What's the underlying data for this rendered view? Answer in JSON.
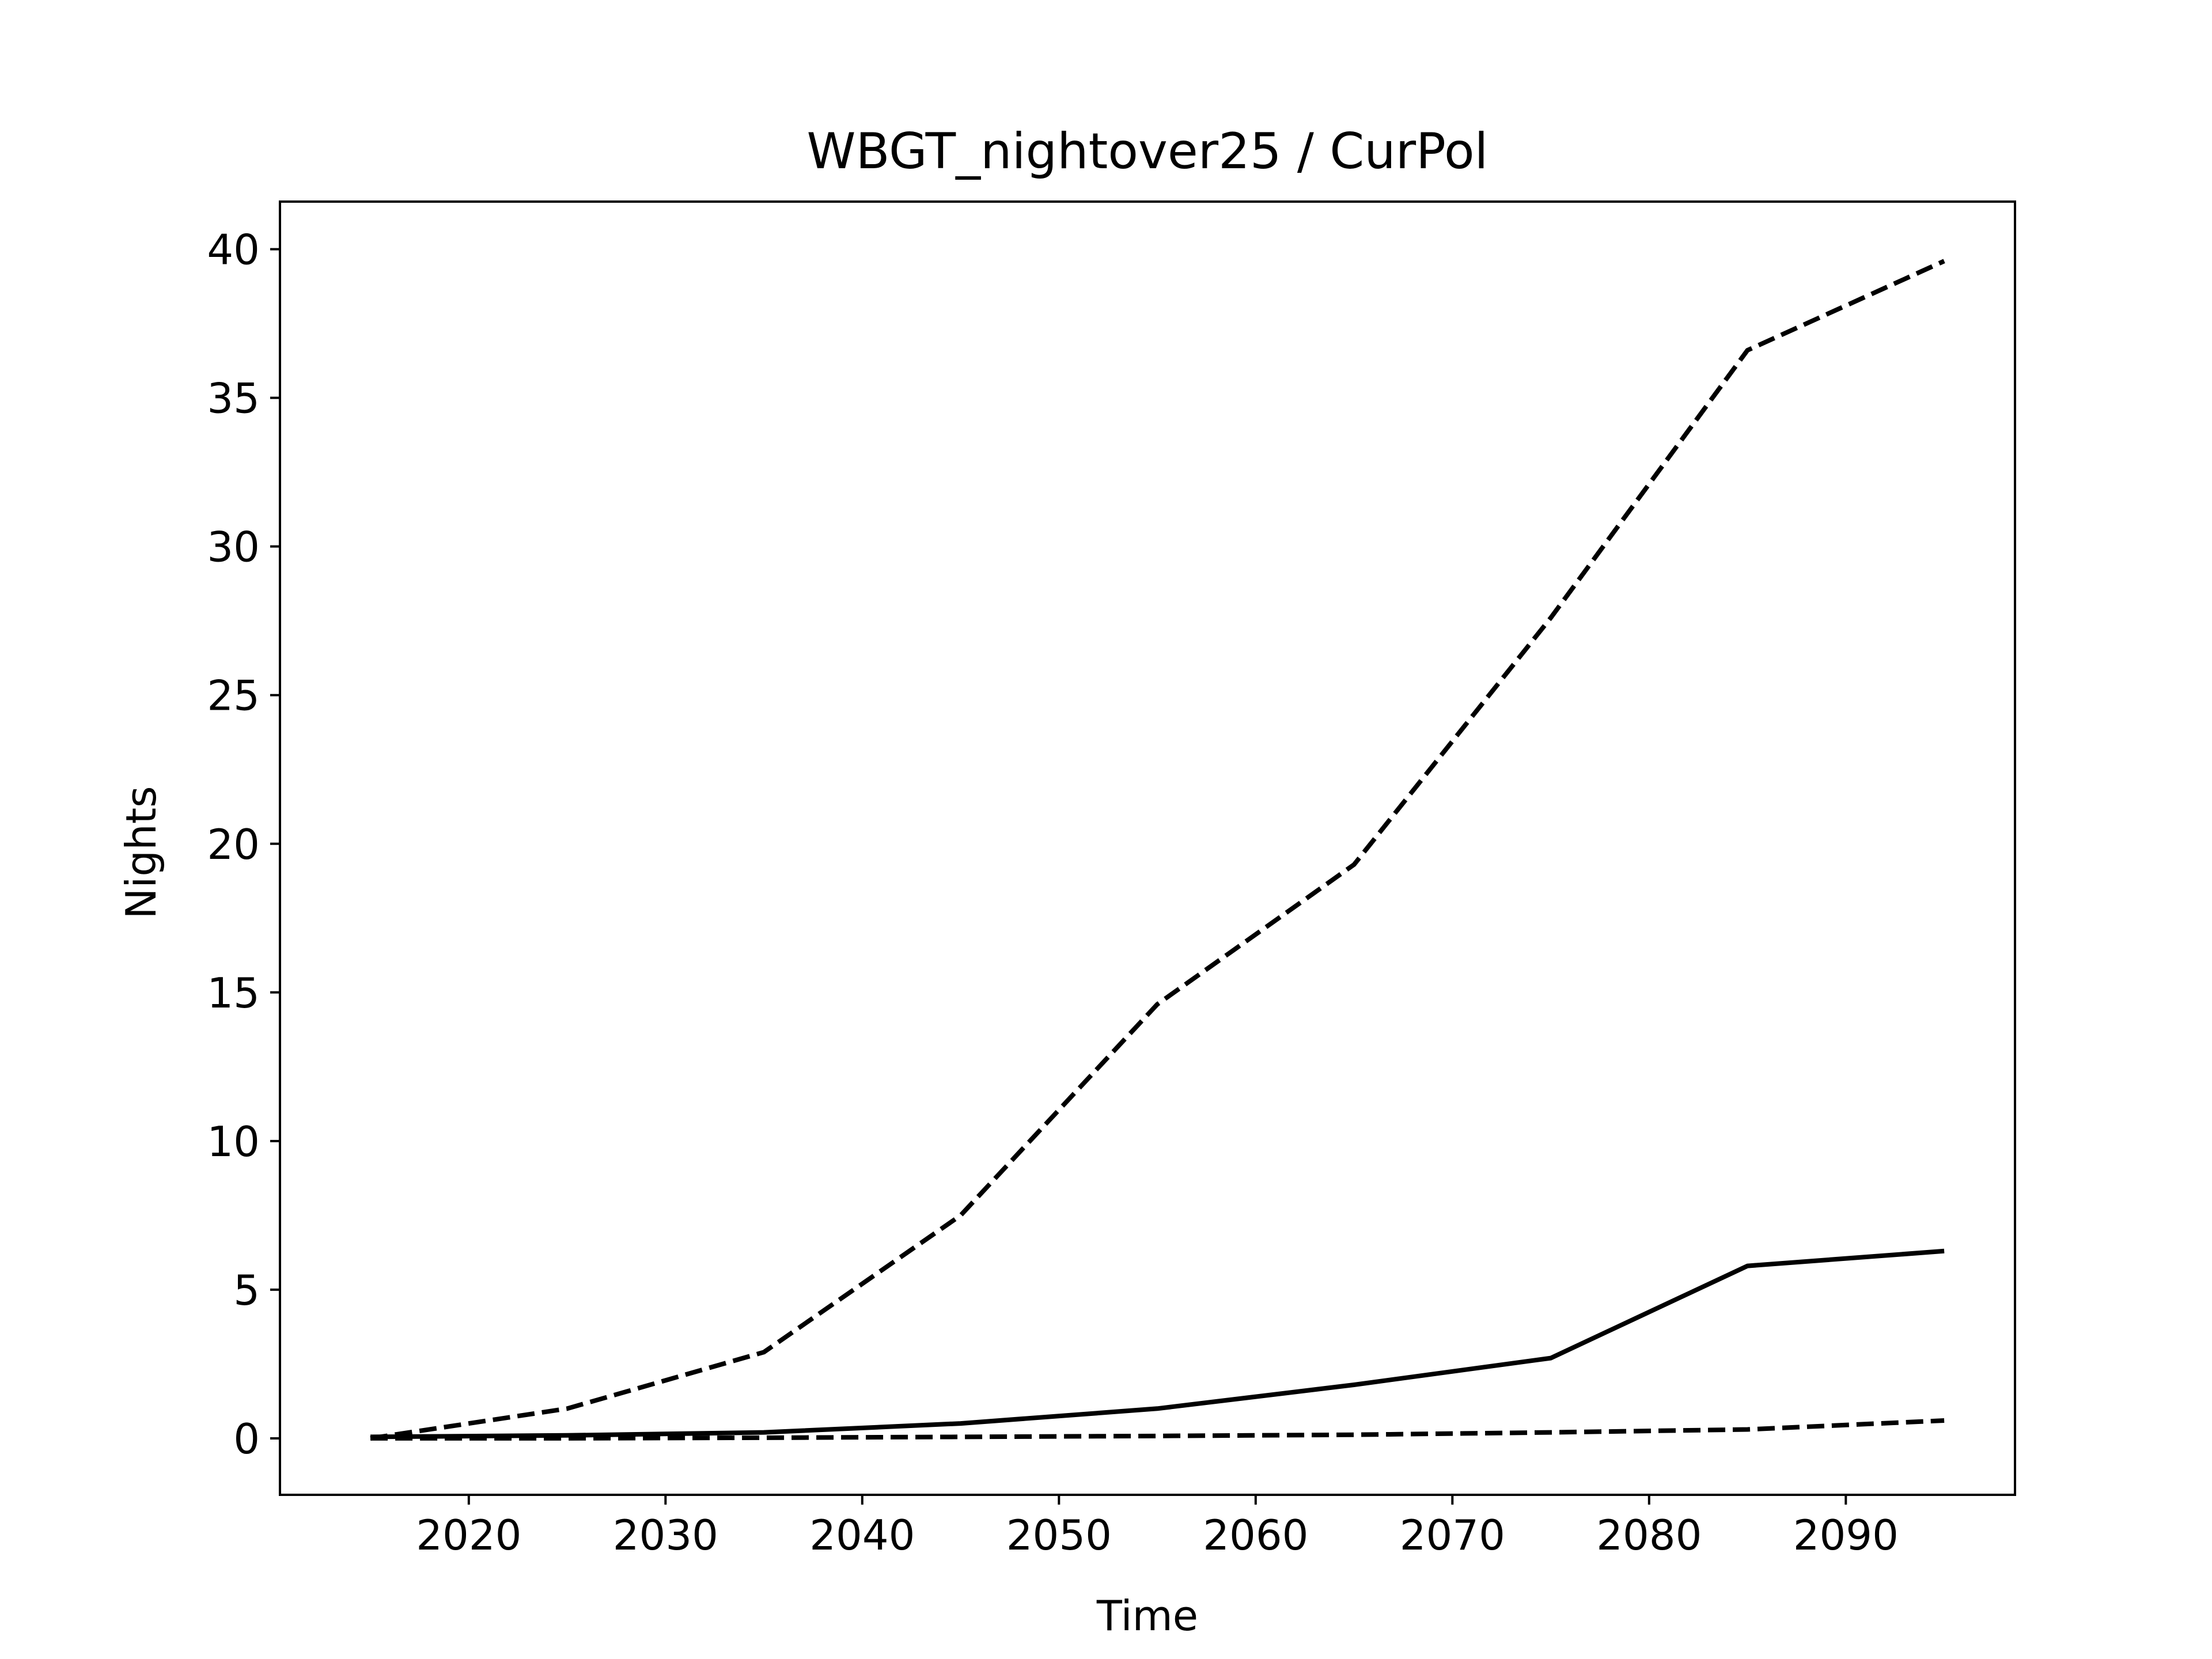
{
  "chart_data": {
    "type": "line",
    "title": "WBGT_nightover25 / CurPol",
    "xlabel": "Time",
    "ylabel": "Nights",
    "x": [
      2015,
      2025,
      2035,
      2045,
      2055,
      2065,
      2075,
      2085,
      2095
    ],
    "xlim": [
      2010.4,
      2098.6
    ],
    "ylim": [
      -1.9,
      41.6
    ],
    "xticks": [
      "2020",
      "2030",
      "2040",
      "2050",
      "2060",
      "2070",
      "2080",
      "2090"
    ],
    "yticks": [
      "0",
      "5",
      "10",
      "15",
      "20",
      "25",
      "30",
      "35",
      "40"
    ],
    "grid": false,
    "series": [
      {
        "style": "dashed",
        "color": "#000000",
        "values": [
          0.0,
          1.0,
          2.9,
          7.5,
          14.6,
          19.3,
          27.6,
          36.6,
          39.6
        ]
      },
      {
        "style": "solid",
        "color": "#000000",
        "values": [
          0.05,
          0.1,
          0.2,
          0.5,
          1.0,
          1.8,
          2.7,
          5.8,
          6.3
        ]
      },
      {
        "style": "dashed",
        "color": "#000000",
        "values": [
          0.0,
          0.0,
          0.02,
          0.05,
          0.08,
          0.12,
          0.2,
          0.3,
          0.6
        ]
      }
    ]
  }
}
